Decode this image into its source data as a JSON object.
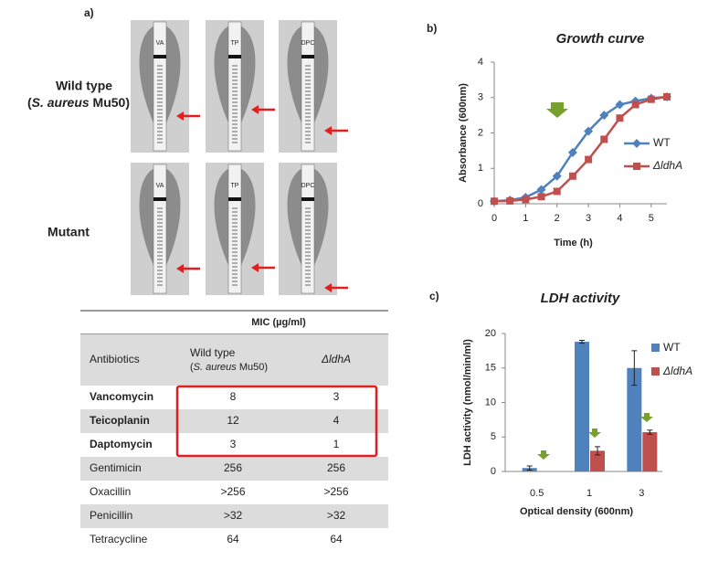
{
  "panel_a": {
    "label": "a)",
    "strips": [
      "VA",
      "TP",
      "DPC"
    ],
    "wild_type": {
      "name": "Wild type",
      "strain": {
        "open": "(",
        "italic": "S. aureus",
        "rest": " Mu50)"
      }
    },
    "mutant": "Mutant"
  },
  "table": {
    "title": "MIC (µg/ml)",
    "header": {
      "antibiotics": "Antibiotics",
      "wild_type": "Wild type",
      "strain": {
        "open": "(",
        "italic": "S. aureus",
        "rest": " Mu50)"
      },
      "mutant": "ΔldhA"
    },
    "rows": [
      {
        "name": "Vancomycin",
        "wild_type": 8,
        "mutant": 3,
        "highlighted": true
      },
      {
        "name": "Teicoplanin",
        "wild_type": 12,
        "mutant": 4,
        "highlighted": true
      },
      {
        "name": "Daptomycin",
        "wild_type": 3,
        "mutant": 1,
        "highlighted": true
      },
      {
        "name": "Gentimicin",
        "wild_type": 256,
        "mutant": 256,
        "highlighted": false
      },
      {
        "name": "Oxacillin",
        "wild_type": ">256",
        "mutant": ">256",
        "highlighted": false
      },
      {
        "name": "Penicillin",
        "wild_type": ">32",
        "mutant": ">32",
        "highlighted": false
      },
      {
        "name": "Tetracycline",
        "wild_type": 64,
        "mutant": 64,
        "highlighted": false
      }
    ]
  },
  "chart_data": [
    {
      "type": "line",
      "label": "b)",
      "title": "Growth curve",
      "xlabel": "Time (h)",
      "ylabel": "Absorbance  (600nm)",
      "x": [
        0,
        0.5,
        1,
        1.5,
        2,
        2.5,
        3,
        3.5,
        4,
        4.5,
        5,
        5.5
      ],
      "series": [
        {
          "name": "WT",
          "color": "#4f81bd",
          "marker": "diamond",
          "italic_name": false,
          "values": [
            0.07,
            0.1,
            0.18,
            0.4,
            0.78,
            1.45,
            2.05,
            2.5,
            2.8,
            2.9,
            2.98,
            3.02
          ]
        },
        {
          "name": "ΔldhA",
          "color": "#c0504d",
          "marker": "square",
          "italic_name": true,
          "values": [
            0.07,
            0.08,
            0.12,
            0.2,
            0.35,
            0.78,
            1.25,
            1.82,
            2.42,
            2.8,
            2.95,
            3.02
          ]
        }
      ],
      "xlim": [
        0,
        5.5
      ],
      "ylim": [
        0,
        4
      ],
      "xticks": [
        0,
        1,
        2,
        3,
        4,
        5
      ],
      "yticks": [
        0,
        1,
        2,
        3,
        4
      ],
      "grid": false
    },
    {
      "type": "bar",
      "label": "c)",
      "title": "LDH activity",
      "xlabel": "Optical density (600nm)",
      "ylabel": "LDH activity (nmol/min/ml)",
      "categories": [
        "0.5",
        "1",
        "3"
      ],
      "series": [
        {
          "name": "WT",
          "color": "#4f81bd",
          "italic_name": false,
          "values": [
            0.5,
            18.8,
            15.0
          ],
          "errors": [
            0.3,
            0.2,
            2.5
          ]
        },
        {
          "name": "ΔldhA",
          "color": "#c0504d",
          "italic_name": true,
          "values": [
            null,
            3.0,
            5.7
          ],
          "errors": [
            null,
            0.6,
            0.3
          ]
        }
      ],
      "ylim": [
        0,
        20
      ],
      "yticks": [
        0,
        5,
        10,
        15,
        20
      ],
      "grid": false
    }
  ]
}
